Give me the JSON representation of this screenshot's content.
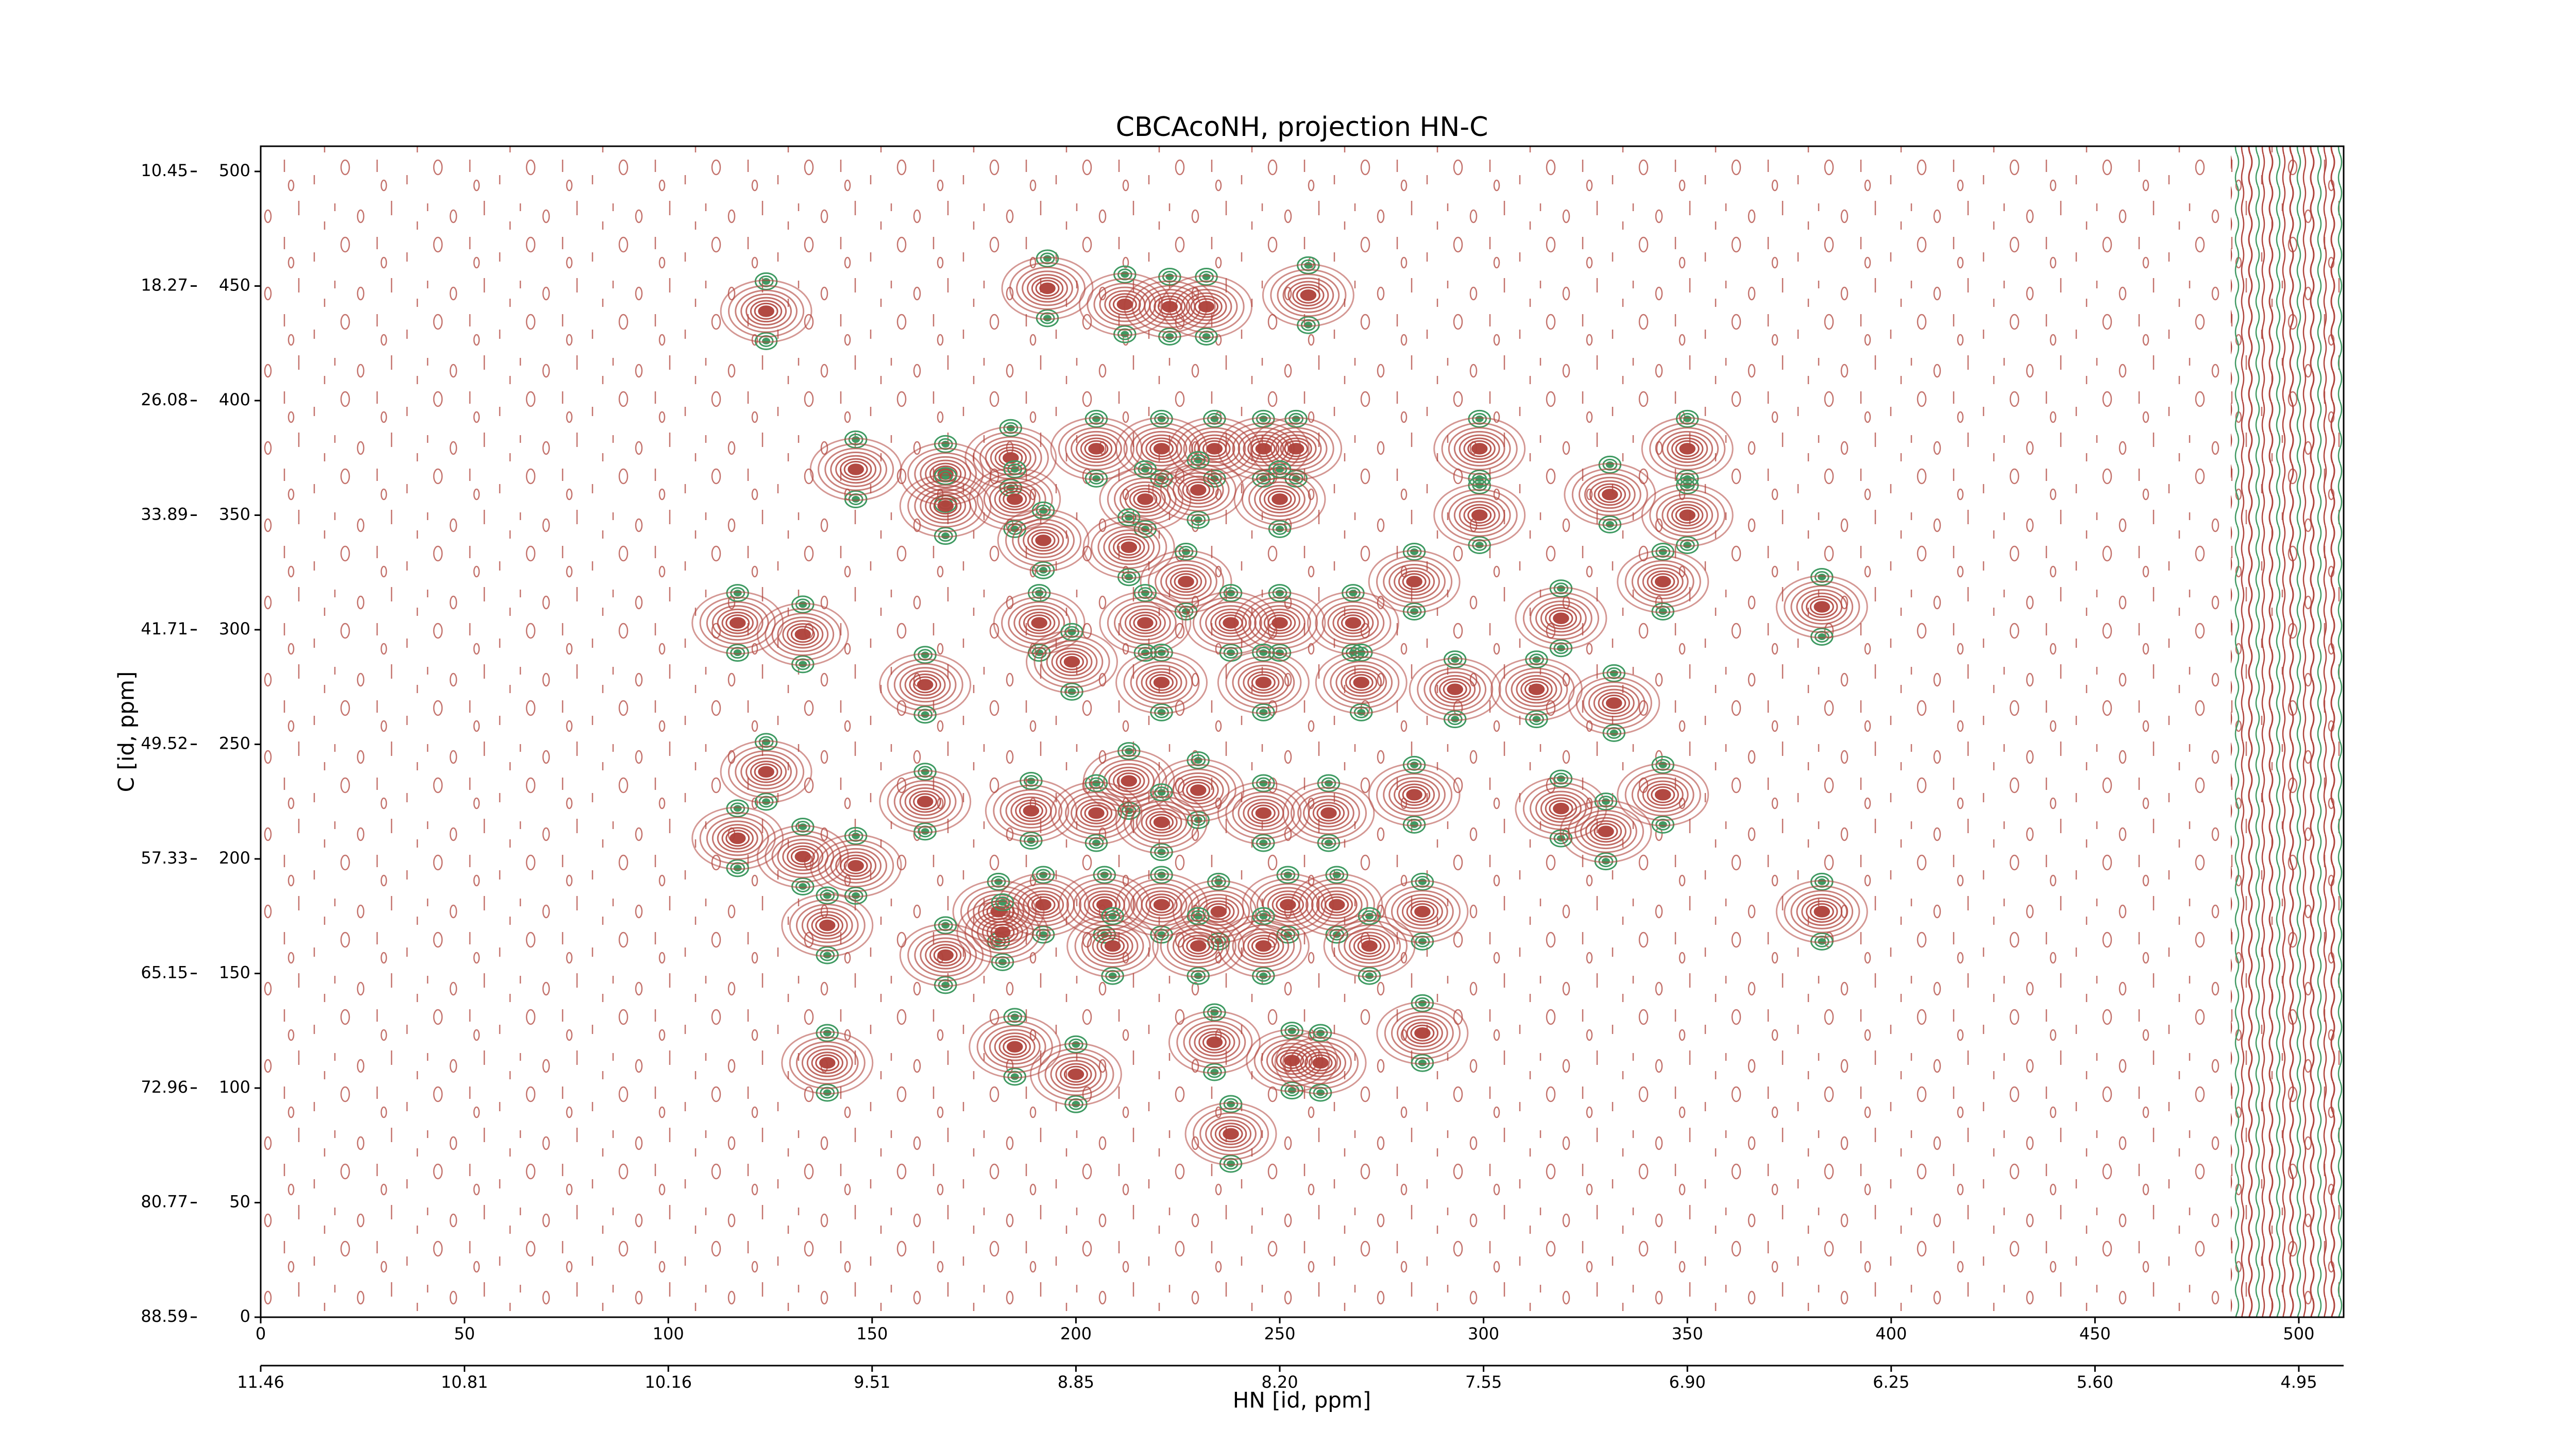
{
  "chart_data": {
    "type": "contour",
    "title": "CBCAcoNH, projection HN-C",
    "xlabel": "HN [id, ppm]",
    "ylabel": "C [id, ppm]",
    "xlim": [
      0,
      511
    ],
    "ylim": [
      0,
      511
    ],
    "xticks": [
      0,
      50,
      100,
      150,
      200,
      250,
      300,
      350,
      400,
      450,
      500
    ],
    "yticks": [
      0,
      50,
      100,
      150,
      200,
      250,
      300,
      350,
      400,
      450,
      500
    ],
    "x2ticks": [
      {
        "value": 0,
        "label": "11.46"
      },
      {
        "value": 50,
        "label": "10.81"
      },
      {
        "value": 100,
        "label": "10.16"
      },
      {
        "value": 150,
        "label": "9.51"
      },
      {
        "value": 200,
        "label": "8.85"
      },
      {
        "value": 250,
        "label": "8.20"
      },
      {
        "value": 300,
        "label": "7.55"
      },
      {
        "value": 350,
        "label": "6.90"
      },
      {
        "value": 400,
        "label": "6.25"
      },
      {
        "value": 450,
        "label": "5.60"
      },
      {
        "value": 500,
        "label": "4.95"
      }
    ],
    "y2ticks": [
      {
        "value": 0,
        "label": "88.59"
      },
      {
        "value": 50,
        "label": "80.77"
      },
      {
        "value": 100,
        "label": "72.96"
      },
      {
        "value": 150,
        "label": "65.15"
      },
      {
        "value": 200,
        "label": "57.33"
      },
      {
        "value": 250,
        "label": "49.52"
      },
      {
        "value": 300,
        "label": "41.71"
      },
      {
        "value": 350,
        "label": "33.89"
      },
      {
        "value": 400,
        "label": "26.08"
      },
      {
        "value": 450,
        "label": "18.27"
      },
      {
        "value": 500,
        "label": "10.45"
      }
    ],
    "positive_color": "#b0443c",
    "negative_color": "#3f9a62",
    "peaks": {
      "x": [
        124,
        193,
        212,
        223,
        232,
        257,
        146,
        168,
        168,
        184,
        185,
        192,
        205,
        221,
        234,
        246,
        254,
        217,
        230,
        250,
        213,
        227,
        299,
        299,
        331,
        350,
        350,
        344,
        283,
        117,
        133,
        191,
        217,
        238,
        250,
        268,
        319,
        383,
        199,
        221,
        246,
        270,
        293,
        313,
        332,
        163,
        124,
        163,
        189,
        213,
        230,
        205,
        221,
        246,
        262,
        283,
        319,
        330,
        344,
        117,
        133,
        146,
        181,
        192,
        207,
        221,
        235,
        252,
        264,
        285,
        383,
        139,
        168,
        182,
        209,
        230,
        246,
        272,
        139,
        185,
        200,
        234,
        253,
        260,
        285,
        238
      ],
      "y": [
        439,
        449,
        442,
        441,
        441,
        446,
        370,
        368,
        354,
        375,
        357,
        339,
        379,
        379,
        379,
        379,
        379,
        357,
        361,
        357,
        336,
        321,
        379,
        350,
        359,
        379,
        350,
        321,
        321,
        303,
        298,
        303,
        303,
        303,
        303,
        303,
        305,
        310,
        286,
        277,
        277,
        277,
        274,
        274,
        268,
        276,
        238,
        225,
        221,
        234,
        230,
        220,
        216,
        220,
        220,
        228,
        222,
        212,
        228,
        209,
        201,
        197,
        177,
        180,
        180,
        180,
        177,
        180,
        180,
        177,
        177,
        171,
        158,
        168,
        162,
        162,
        162,
        162,
        111,
        118,
        106,
        120,
        112,
        111,
        124,
        80
      ]
    }
  }
}
